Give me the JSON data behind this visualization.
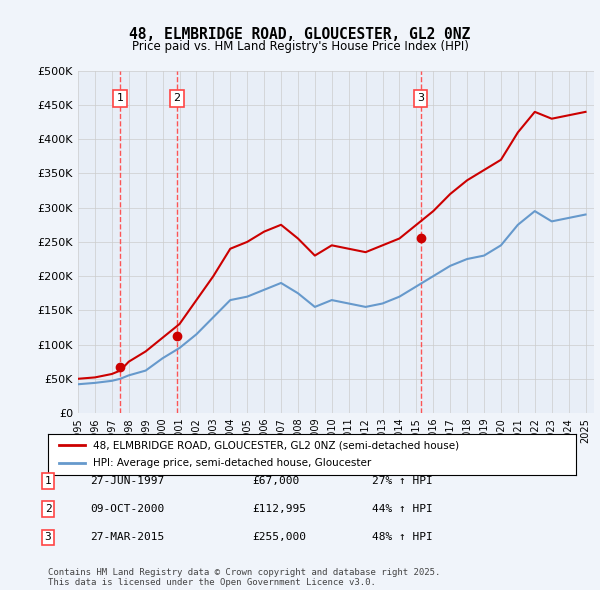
{
  "title": "48, ELMBRIDGE ROAD, GLOUCESTER, GL2 0NZ",
  "subtitle": "Price paid vs. HM Land Registry's House Price Index (HPI)",
  "background_color": "#f0f4fa",
  "plot_bg_color": "#e8eef7",
  "ylim": [
    0,
    500000
  ],
  "yticks": [
    0,
    50000,
    100000,
    150000,
    200000,
    250000,
    300000,
    350000,
    400000,
    450000,
    500000
  ],
  "ytick_labels": [
    "£0",
    "£50K",
    "£100K",
    "£150K",
    "£200K",
    "£250K",
    "£300K",
    "£350K",
    "£400K",
    "£450K",
    "£500K"
  ],
  "sale_dates": [
    "1997-06-27",
    "2000-10-09",
    "2015-03-27"
  ],
  "sale_prices": [
    67000,
    112995,
    255000
  ],
  "sale_labels": [
    "1",
    "2",
    "3"
  ],
  "sale_pct_hpi": [
    "27% ↑ HPI",
    "44% ↑ HPI",
    "48% ↑ HPI"
  ],
  "sale_dates_str": [
    "27-JUN-1997",
    "09-OCT-2000",
    "27-MAR-2015"
  ],
  "sale_prices_str": [
    "£67,000",
    "£112,995",
    "£255,000"
  ],
  "red_line_color": "#cc0000",
  "blue_line_color": "#6699cc",
  "vline_color": "#ff4444",
  "grid_color": "#cccccc",
  "legend_label_red": "48, ELMBRIDGE ROAD, GLOUCESTER, GL2 0NZ (semi-detached house)",
  "legend_label_blue": "HPI: Average price, semi-detached house, Gloucester",
  "footer_text": "Contains HM Land Registry data © Crown copyright and database right 2025.\nThis data is licensed under the Open Government Licence v3.0.",
  "hpi_data": {
    "years": [
      1995,
      1996,
      1997,
      1997.5,
      1998,
      1999,
      2000,
      2001,
      2002,
      2003,
      2004,
      2005,
      2006,
      2007,
      2008,
      2009,
      2010,
      2011,
      2012,
      2013,
      2014,
      2015,
      2016,
      2017,
      2018,
      2019,
      2020,
      2021,
      2022,
      2023,
      2024,
      2025
    ],
    "hpi_values": [
      42000,
      44000,
      47000,
      50000,
      55000,
      62000,
      80000,
      95000,
      115000,
      140000,
      165000,
      170000,
      180000,
      190000,
      175000,
      155000,
      165000,
      160000,
      155000,
      160000,
      170000,
      185000,
      200000,
      215000,
      225000,
      230000,
      245000,
      275000,
      295000,
      280000,
      285000,
      290000
    ]
  },
  "red_line_data": {
    "years": [
      1995,
      1996,
      1997,
      1997.5,
      1998,
      1999,
      2000,
      2001,
      2002,
      2003,
      2004,
      2005,
      2006,
      2007,
      2008,
      2009,
      2010,
      2011,
      2012,
      2013,
      2014,
      2015,
      2016,
      2017,
      2018,
      2019,
      2020,
      2021,
      2022,
      2023,
      2024,
      2025
    ],
    "values": [
      50000,
      52000,
      57000,
      62000,
      75000,
      90000,
      110000,
      130000,
      165000,
      200000,
      240000,
      250000,
      265000,
      275000,
      255000,
      230000,
      245000,
      240000,
      235000,
      245000,
      255000,
      275000,
      295000,
      320000,
      340000,
      355000,
      370000,
      410000,
      440000,
      430000,
      435000,
      440000
    ]
  }
}
